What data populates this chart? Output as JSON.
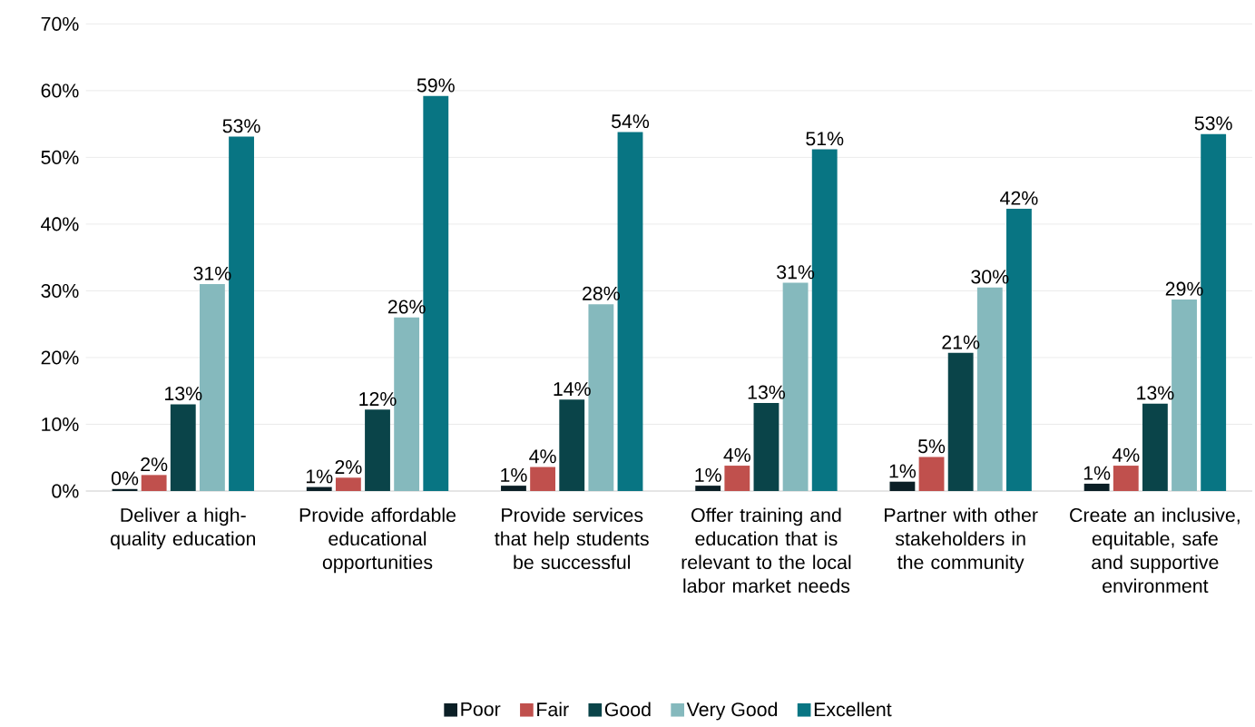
{
  "chart_data": {
    "type": "bar",
    "categories": [
      "Deliver a high-quality education",
      "Provide affordable educational opportunities",
      "Provide services that help students be successful",
      "Offer training and education that is relevant to the local labor market needs",
      "Partner with other stakeholders in the community",
      "Create an inclusive, equitable, safe and supportive environment"
    ],
    "series": [
      {
        "name": "Poor",
        "color": "#0b1f26",
        "values": [
          0.3,
          0.6,
          0.8,
          0.8,
          1.4,
          1.1
        ],
        "value_labels": [
          "0%",
          "1%",
          "1%",
          "1%",
          "1%",
          "1%"
        ]
      },
      {
        "name": "Fair",
        "color": "#c0504d",
        "values": [
          2.4,
          2.0,
          3.6,
          3.8,
          5.1,
          3.8
        ],
        "value_labels": [
          "2%",
          "2%",
          "4%",
          "4%",
          "5%",
          "4%"
        ]
      },
      {
        "name": "Good",
        "color": "#0a4449",
        "values": [
          13.0,
          12.2,
          13.7,
          13.2,
          20.7,
          13.1
        ],
        "value_labels": [
          "13%",
          "12%",
          "14%",
          "13%",
          "21%",
          "13%"
        ]
      },
      {
        "name": "Very Good",
        "color": "#85b9bd",
        "values": [
          31.0,
          26.0,
          28.0,
          31.2,
          30.5,
          28.7
        ],
        "value_labels": [
          "31%",
          "26%",
          "28%",
          "31%",
          "30%",
          "29%"
        ]
      },
      {
        "name": "Excellent",
        "color": "#087583",
        "values": [
          53.1,
          59.2,
          53.8,
          51.2,
          42.3,
          53.5
        ],
        "value_labels": [
          "53%",
          "59%",
          "54%",
          "51%",
          "42%",
          "53%"
        ]
      }
    ],
    "ylim": [
      0,
      70
    ],
    "yticks": [
      {
        "value": 0,
        "label": "0%"
      },
      {
        "value": 10,
        "label": "10%"
      },
      {
        "value": 20,
        "label": "20%"
      },
      {
        "value": 30,
        "label": "30%"
      },
      {
        "value": 40,
        "label": "40%"
      },
      {
        "value": 50,
        "label": "50%"
      },
      {
        "value": 60,
        "label": "60%"
      },
      {
        "value": 70,
        "label": "70%"
      }
    ],
    "grid": "y",
    "legend": "bottom"
  }
}
